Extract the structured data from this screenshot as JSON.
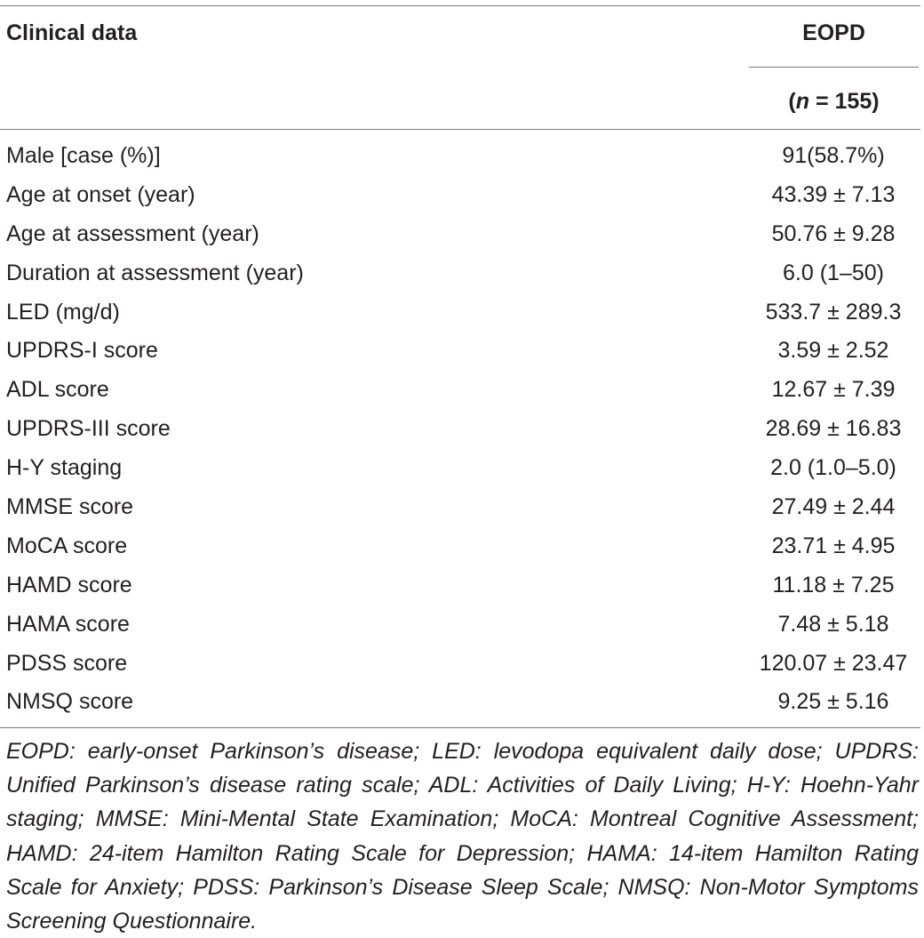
{
  "table": {
    "header": {
      "col1": "Clinical data",
      "col2": "EOPD",
      "n_open": "(",
      "n_symbol": "n",
      "n_rest": " = 155)"
    },
    "rows": [
      {
        "label": "Male [case (%)]",
        "value": "91(58.7%)"
      },
      {
        "label": "Age at onset (year)",
        "value": "43.39 ± 7.13"
      },
      {
        "label": "Age at assessment (year)",
        "value": "50.76 ± 9.28"
      },
      {
        "label": "Duration at assessment (year)",
        "value": "6.0 (1–50)"
      },
      {
        "label": "LED (mg/d)",
        "value": "533.7 ± 289.3"
      },
      {
        "label": "UPDRS-I score",
        "value": "3.59 ± 2.52"
      },
      {
        "label": "ADL score",
        "value": "12.67 ± 7.39"
      },
      {
        "label": "UPDRS-III score",
        "value": "28.69 ± 16.83"
      },
      {
        "label": "H-Y staging",
        "value": "2.0 (1.0–5.0)"
      },
      {
        "label": "MMSE score",
        "value": "27.49 ± 2.44"
      },
      {
        "label": "MoCA score",
        "value": "23.71 ± 4.95"
      },
      {
        "label": "HAMD score",
        "value": "11.18 ± 7.25"
      },
      {
        "label": "HAMA score",
        "value": "7.48 ± 5.18"
      },
      {
        "label": "PDSS score",
        "value": "120.07 ± 23.47"
      },
      {
        "label": "NMSQ score",
        "value": "9.25 ± 5.16"
      }
    ],
    "footnote": "EOPD: early-onset Parkinson’s disease; LED: levodopa equivalent daily dose; UPDRS: Unified Parkinson’s disease rating scale; ADL: Activities of Daily Living; H-Y: Hoehn-Yahr staging; MMSE: Mini-Mental State Examination; MoCA: Montreal Cognitive Assessment; HAMD: 24-item Hamilton Rating Scale for Depression; HAMA: 14-item Hamilton Rating Scale for Anxiety; PDSS: Parkinson’s Disease Sleep Scale; NMSQ: Non-Motor Symptoms Screening Questionnaire."
  }
}
